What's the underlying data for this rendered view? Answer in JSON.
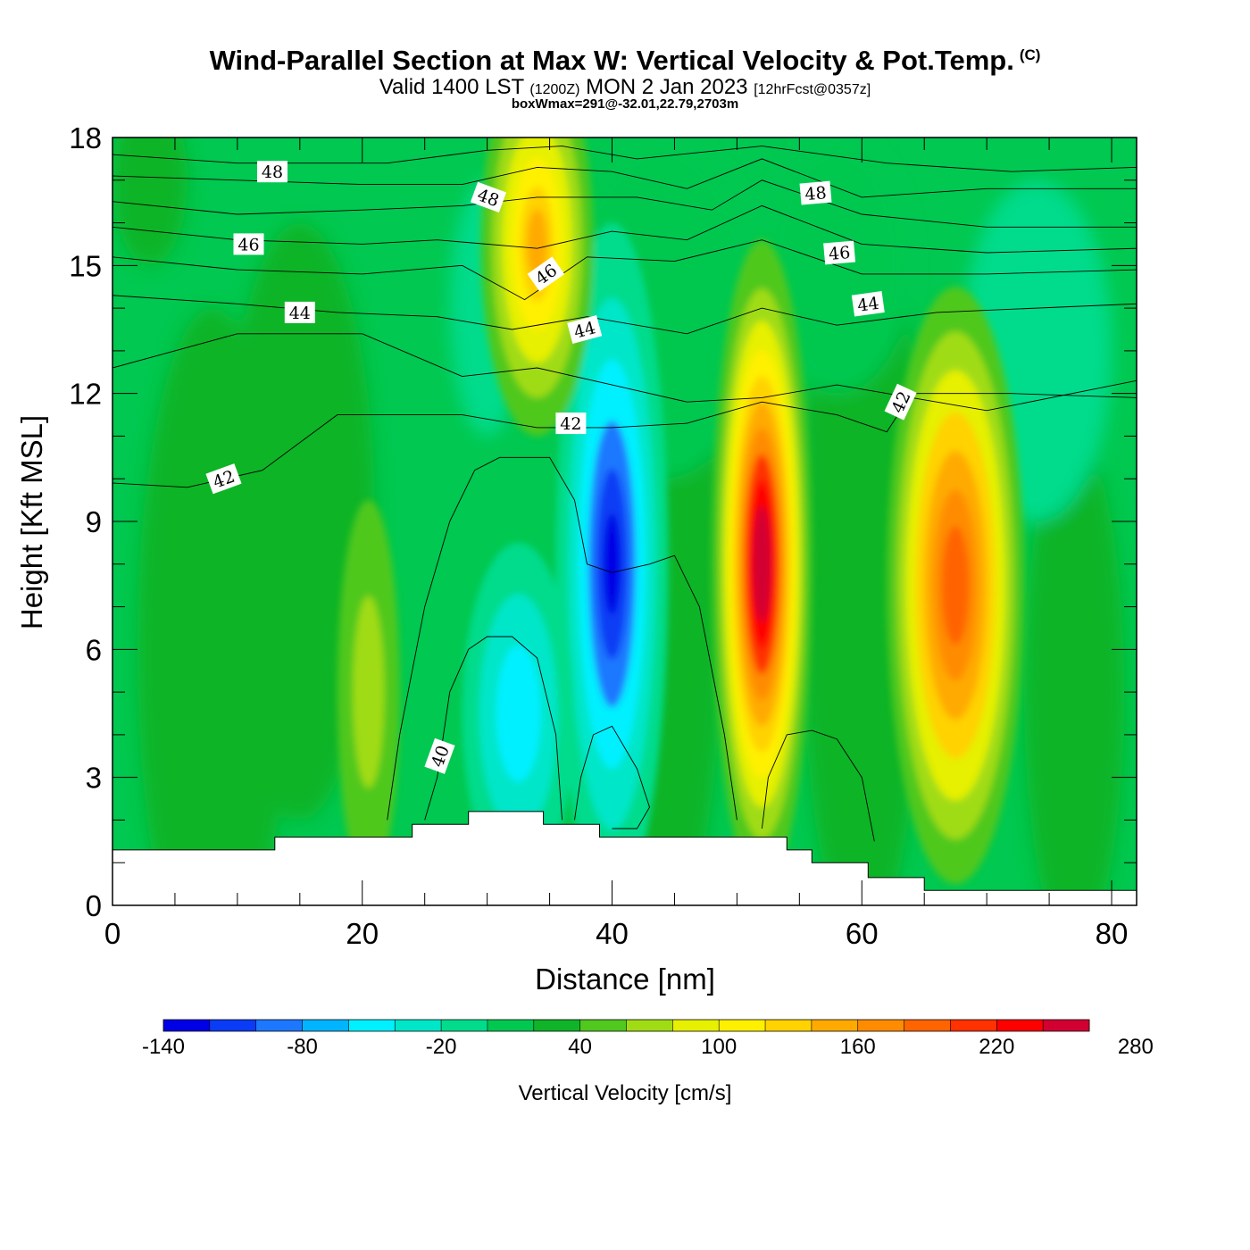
{
  "header": {
    "title": "Wind-Parallel Section at Max W: Vertical Velocity & Pot.Temp.",
    "copyright": "(C)",
    "valid_prefix": "Valid 1400 LST",
    "valid_zulu": "(1200Z)",
    "valid_date": "MON 2 Jan 2023",
    "forecast": "[12hrFcst@0357z]",
    "box_info": "boxWmax=291@-32.01,22.79,2703m"
  },
  "chart_data": {
    "type": "heatmap",
    "xlabel": "Distance [nm]",
    "ylabel": "Height [Kft MSL]",
    "xlim": [
      0,
      82
    ],
    "ylim": [
      0,
      18
    ],
    "x_ticks": [
      0,
      20,
      40,
      60,
      80
    ],
    "y_ticks": [
      0,
      3,
      6,
      9,
      12,
      15,
      18
    ],
    "colorbar": {
      "label": "Vertical Velocity [cm/s]",
      "min": -140,
      "step": 20,
      "tick_labels": [
        "-140",
        "-80",
        "-20",
        "40",
        "100",
        "160",
        "220",
        "280"
      ],
      "tick_values": [
        -140,
        -80,
        -20,
        40,
        100,
        160,
        220,
        280
      ],
      "colors": [
        "#0000e6",
        "#0a3cf5",
        "#1e78ff",
        "#00b4ff",
        "#00f0ff",
        "#00e6c8",
        "#00dc8c",
        "#00c850",
        "#10b428",
        "#50c81e",
        "#a0dc14",
        "#e6f000",
        "#fff000",
        "#ffd200",
        "#ffaa00",
        "#ff8c00",
        "#ff6400",
        "#ff3200",
        "#ff0000",
        "#d20032"
      ]
    },
    "updraft_cores": [
      {
        "x": 52,
        "y": 8,
        "peak_w": 291
      },
      {
        "x": 67.5,
        "y": 7.5,
        "peak_w": 190
      },
      {
        "x": 34,
        "y": 16,
        "peak_w": 140
      }
    ],
    "downdraft_cores": [
      {
        "x": 40,
        "y": 8,
        "peak_w": -140
      },
      {
        "x": 32.5,
        "y": 4.5,
        "peak_w": -70
      }
    ],
    "theta_contours": {
      "labels": [
        "40",
        "42",
        "42",
        "42",
        "44",
        "44",
        "44",
        "46",
        "46",
        "46",
        "48",
        "48",
        "48"
      ]
    },
    "terrain": {
      "x": [
        0,
        13,
        13,
        24,
        24,
        28.5,
        28.5,
        34.5,
        34.5,
        39,
        39,
        54,
        54,
        56,
        56,
        60.5,
        60.5,
        65,
        65,
        82
      ],
      "y": [
        1.3,
        1.3,
        1.6,
        1.6,
        1.9,
        1.9,
        2.2,
        2.2,
        1.9,
        1.9,
        1.6,
        1.6,
        1.3,
        1.3,
        1.0,
        1.0,
        0.65,
        0.65,
        0.35,
        0.35
      ]
    }
  }
}
